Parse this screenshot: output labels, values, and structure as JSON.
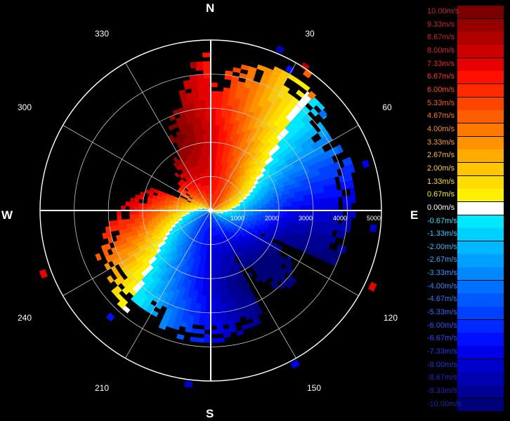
{
  "chart_data": {
    "type": "polar-radial-velocity",
    "cardinals": {
      "n": "N",
      "e": "E",
      "s": "S",
      "w": "W"
    },
    "azimuth_labels": [
      "30",
      "60",
      "120",
      "150",
      "210",
      "240",
      "300",
      "330"
    ],
    "azimuth_values": [
      30,
      60,
      120,
      150,
      210,
      240,
      300,
      330
    ],
    "range_labels": [
      "1000",
      "2000",
      "3000",
      "4000",
      "5000"
    ],
    "range_values": [
      1000,
      2000,
      3000,
      4000,
      5000
    ],
    "range_max": 5000,
    "grid": true,
    "legend_position": "right",
    "legend": [
      {
        "label": "10.00m/s",
        "value": 10.0,
        "color": "#7a0000",
        "text_color": "#cc2222"
      },
      {
        "label": "9.33m/s",
        "value": 9.33,
        "color": "#950000",
        "text_color": "#cc2222"
      },
      {
        "label": "8.67m/s",
        "value": 8.67,
        "color": "#b00000",
        "text_color": "#cc2222"
      },
      {
        "label": "8.00m/s",
        "value": 8.0,
        "color": "#cc0000",
        "text_color": "#dd2222"
      },
      {
        "label": "7.33m/s",
        "value": 7.33,
        "color": "#e60000",
        "text_color": "#ee2222"
      },
      {
        "label": "6.67m/s",
        "value": 6.67,
        "color": "#ff1000",
        "text_color": "#ff3322"
      },
      {
        "label": "6.00m/s",
        "value": 6.0,
        "color": "#ff2a00",
        "text_color": "#ff4422"
      },
      {
        "label": "5.33m/s",
        "value": 5.33,
        "color": "#ff4400",
        "text_color": "#ff5522"
      },
      {
        "label": "4.67m/s",
        "value": 4.67,
        "color": "#ff5e00",
        "text_color": "#ff7722"
      },
      {
        "label": "4.00m/s",
        "value": 4.0,
        "color": "#ff7800",
        "text_color": "#ff8833"
      },
      {
        "label": "3.33m/s",
        "value": 3.33,
        "color": "#ff9200",
        "text_color": "#ffa033"
      },
      {
        "label": "2.67m/s",
        "value": 2.67,
        "color": "#ffac00",
        "text_color": "#ffb833"
      },
      {
        "label": "2.00m/s",
        "value": 2.0,
        "color": "#ffc600",
        "text_color": "#ffcc33"
      },
      {
        "label": "1.33m/s",
        "value": 1.33,
        "color": "#ffdc00",
        "text_color": "#ffdd33"
      },
      {
        "label": "0.67m/s",
        "value": 0.67,
        "color": "#fff000",
        "text_color": "#ffee33"
      },
      {
        "label": "0.00m/s",
        "value": 0.0,
        "color": "#ffffff",
        "text_color": "#ffffff"
      },
      {
        "label": "-0.67m/s",
        "value": -0.67,
        "color": "#00e8ff",
        "text_color": "#33ddff"
      },
      {
        "label": "-1.33m/s",
        "value": -1.33,
        "color": "#00d0ff",
        "text_color": "#33ccff"
      },
      {
        "label": "-2.00m/s",
        "value": -2.0,
        "color": "#00b8ff",
        "text_color": "#33bbff"
      },
      {
        "label": "-2.67m/s",
        "value": -2.67,
        "color": "#00a0ff",
        "text_color": "#33aaff"
      },
      {
        "label": "-3.33m/s",
        "value": -3.33,
        "color": "#0088ff",
        "text_color": "#3399ff"
      },
      {
        "label": "-4.00m/s",
        "value": -4.0,
        "color": "#0070ff",
        "text_color": "#3388ff"
      },
      {
        "label": "-4.67m/s",
        "value": -4.67,
        "color": "#0058ff",
        "text_color": "#3377ff"
      },
      {
        "label": "-5.33m/s",
        "value": -5.33,
        "color": "#0040ff",
        "text_color": "#3366ff"
      },
      {
        "label": "-6.00m/s",
        "value": -6.0,
        "color": "#0028ff",
        "text_color": "#3355ff"
      },
      {
        "label": "-6.67m/s",
        "value": -6.67,
        "color": "#0010ff",
        "text_color": "#3344ff"
      },
      {
        "label": "-7.33m/s",
        "value": -7.33,
        "color": "#0000e8",
        "text_color": "#2233ee"
      },
      {
        "label": "-8.00m/s",
        "value": -8.0,
        "color": "#0000cc",
        "text_color": "#2233dd"
      },
      {
        "label": "-8.67m/s",
        "value": -8.67,
        "color": "#0000b0",
        "text_color": "#2222cc"
      },
      {
        "label": "-9.33m/s",
        "value": -9.33,
        "color": "#000094",
        "text_color": "#2222bb"
      },
      {
        "label": "-10.00m/s",
        "value": -10.0,
        "color": "#000078",
        "text_color": "#2222aa"
      }
    ]
  }
}
